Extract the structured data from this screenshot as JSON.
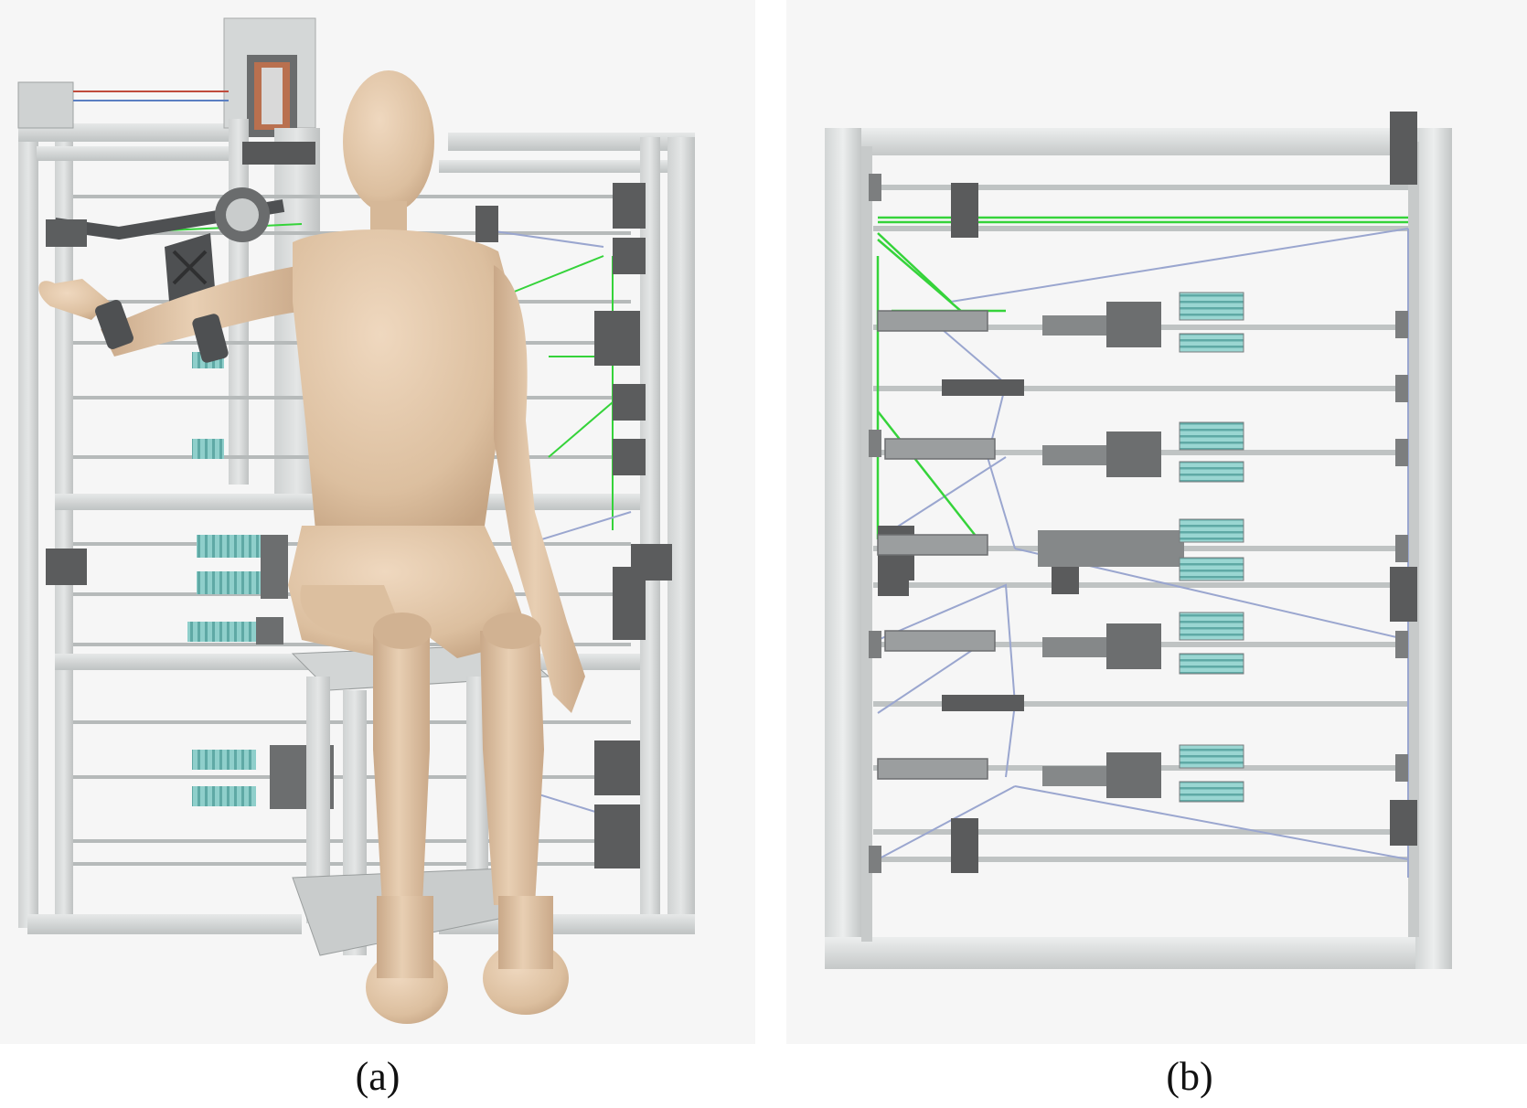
{
  "figure": {
    "panels": [
      {
        "id": "a",
        "caption": "(a)"
      },
      {
        "id": "b",
        "caption": "(b)"
      }
    ],
    "colors": {
      "frame": "#d6d8d8",
      "frame_shadow": "#b9bcbc",
      "rod": "#c9cccc",
      "dark_part": "#595a5a",
      "cable_green": "#35d33a",
      "cable_blue": "#9aa6cf",
      "spring": "#7fc6c2",
      "mannequin": "#e2c7a8",
      "mannequin_shadow": "#c9a988",
      "exo_dark": "#4e5052"
    }
  }
}
